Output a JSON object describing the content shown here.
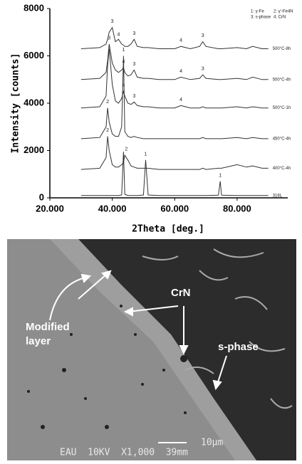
{
  "chart_data": {
    "type": "line",
    "y_label": "Intensity [counts]",
    "x_label": "2Theta [deg.]",
    "xlim": [
      20,
      96
    ],
    "ylim": [
      0,
      8000
    ],
    "xticks": [
      {
        "value": 20,
        "label": "20.000"
      },
      {
        "value": 40,
        "label": "40.000"
      },
      {
        "value": 60,
        "label": "60.000"
      },
      {
        "value": 80,
        "label": "80.000"
      }
    ],
    "yticks": [
      0,
      2000,
      4000,
      6000,
      8000
    ],
    "legend_text": [
      "1: γ-Fe",
      "2: γ'-Fe4N",
      "3: s-phase",
      "4: CrN"
    ],
    "x": [
      30,
      36,
      38,
      38.5,
      39,
      40,
      41,
      42,
      43,
      43.6,
      44,
      45,
      46,
      47,
      48,
      50,
      50.7,
      51.5,
      55,
      60,
      62,
      65,
      68,
      69,
      70,
      74,
      74.6,
      75,
      80,
      83,
      85,
      88,
      90
    ],
    "series": [
      {
        "name": "500°C-8h",
        "color": "#333333",
        "values": [
          6300,
          6350,
          6500,
          6700,
          7000,
          7200,
          6600,
          6700,
          6500,
          6450,
          6400,
          6400,
          6500,
          6700,
          6400,
          6350,
          6350,
          6350,
          6300,
          6300,
          6400,
          6300,
          6400,
          6600,
          6400,
          6300,
          6300,
          6300,
          6350,
          6300,
          6400,
          6300,
          6300
        ]
      },
      {
        "name": "500°C-4h",
        "color": "#333333",
        "values": [
          5000,
          5050,
          5300,
          5800,
          6500,
          5700,
          5400,
          5300,
          5400,
          5500,
          5300,
          5150,
          5200,
          5400,
          5100,
          5050,
          5050,
          5050,
          5000,
          5000,
          5100,
          5000,
          5050,
          5200,
          5050,
          5000,
          5000,
          5000,
          5050,
          5000,
          5100,
          5000,
          5000
        ]
      },
      {
        "name": "500°C-1h",
        "color": "#333333",
        "values": [
          3800,
          3850,
          4300,
          5600,
          6300,
          4800,
          4100,
          4000,
          4200,
          4500,
          4300,
          4000,
          3950,
          4050,
          3900,
          3850,
          3850,
          3850,
          3800,
          3800,
          3900,
          3800,
          3800,
          3850,
          3800,
          3800,
          3800,
          3800,
          3850,
          3800,
          3850,
          3800,
          3800
        ]
      },
      {
        "name": "450°C-4h",
        "color": "#333333",
        "values": [
          2500,
          2550,
          3000,
          3800,
          3200,
          2700,
          2600,
          2600,
          3000,
          6000,
          2800,
          2600,
          2550,
          2600,
          2550,
          2500,
          2500,
          2500,
          2500,
          2500,
          2500,
          2500,
          2500,
          2550,
          2500,
          2500,
          2500,
          2500,
          2550,
          2500,
          2550,
          2500,
          2500
        ]
      },
      {
        "name": "400°C-4h",
        "color": "#333333",
        "values": [
          1200,
          1250,
          1700,
          2600,
          2000,
          1400,
          1300,
          1300,
          1400,
          1500,
          1800,
          1600,
          1350,
          1300,
          1250,
          1250,
          1250,
          1250,
          1200,
          1200,
          1200,
          1200,
          1200,
          1250,
          1200,
          1250,
          1250,
          1250,
          1400,
          1300,
          1350,
          1250,
          1250
        ]
      },
      {
        "name": "316L",
        "color": "#333333",
        "values": [
          100,
          100,
          100,
          100,
          100,
          100,
          100,
          100,
          120,
          1950,
          150,
          100,
          100,
          100,
          100,
          120,
          1600,
          120,
          100,
          100,
          100,
          100,
          100,
          100,
          100,
          110,
          700,
          110,
          100,
          100,
          100,
          100,
          100
        ]
      }
    ],
    "annotations": [
      {
        "text": "3",
        "x": 40,
        "y": 7450
      },
      {
        "text": "4",
        "x": 42,
        "y": 6900
      },
      {
        "text": "3",
        "x": 47,
        "y": 6950
      },
      {
        "text": "4",
        "x": 62,
        "y": 6650
      },
      {
        "text": "3",
        "x": 69,
        "y": 6850
      },
      {
        "text": "3",
        "x": 39,
        "y": 6750
      },
      {
        "text": "4",
        "x": 43.6,
        "y": 5750
      },
      {
        "text": "3",
        "x": 47,
        "y": 5650
      },
      {
        "text": "4",
        "x": 62,
        "y": 5350
      },
      {
        "text": "3",
        "x": 69,
        "y": 5450
      },
      {
        "text": "4",
        "x": 43.6,
        "y": 4750
      },
      {
        "text": "3",
        "x": 47,
        "y": 4300
      },
      {
        "text": "4",
        "x": 62,
        "y": 4150
      },
      {
        "text": "2",
        "x": 38.5,
        "y": 4050
      },
      {
        "text": "1",
        "x": 43.6,
        "y": 6250
      },
      {
        "text": "2",
        "x": 38.5,
        "y": 2850
      },
      {
        "text": "2",
        "x": 44.5,
        "y": 2050
      },
      {
        "text": "1",
        "x": 50.7,
        "y": 1850
      },
      {
        "text": "1",
        "x": 74.6,
        "y": 950
      }
    ]
  },
  "micrograph": {
    "labels": {
      "crn": "CrN",
      "modified_layer": [
        "Modified",
        "layer"
      ],
      "s_phase": "s-phase"
    },
    "scale_bar": "10µm",
    "info_bar": "EAU  10KV  X1,000  39mm"
  }
}
